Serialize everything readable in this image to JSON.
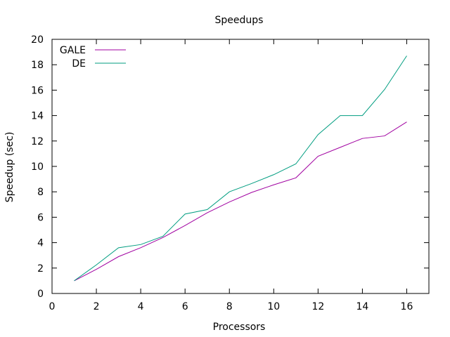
{
  "chart_data": {
    "type": "line",
    "title": "Speedups",
    "xlabel": "Processors",
    "ylabel": "Speedup (sec)",
    "xlim": [
      0,
      17
    ],
    "ylim": [
      0,
      20
    ],
    "xticks": [
      0,
      2,
      4,
      6,
      8,
      10,
      12,
      14,
      16
    ],
    "yticks": [
      0,
      2,
      4,
      6,
      8,
      10,
      12,
      14,
      16,
      18,
      20
    ],
    "grid": false,
    "legend_position": "top-left",
    "x": [
      1,
      2,
      3,
      4,
      5,
      6,
      7,
      8,
      9,
      10,
      11,
      12,
      13,
      14,
      15,
      16
    ],
    "series": [
      {
        "name": "GALE",
        "color": "#a000a0",
        "values": [
          1.0,
          1.9,
          2.9,
          3.6,
          4.4,
          5.35,
          6.35,
          7.2,
          7.95,
          8.55,
          9.1,
          10.8,
          11.5,
          12.2,
          12.4,
          13.5
        ]
      },
      {
        "name": "DE",
        "color": "#009d80",
        "values": [
          1.0,
          2.25,
          3.6,
          3.85,
          4.5,
          6.25,
          6.6,
          8.0,
          8.65,
          9.35,
          10.2,
          12.5,
          14.0,
          14.0,
          16.05,
          18.7
        ]
      }
    ]
  }
}
